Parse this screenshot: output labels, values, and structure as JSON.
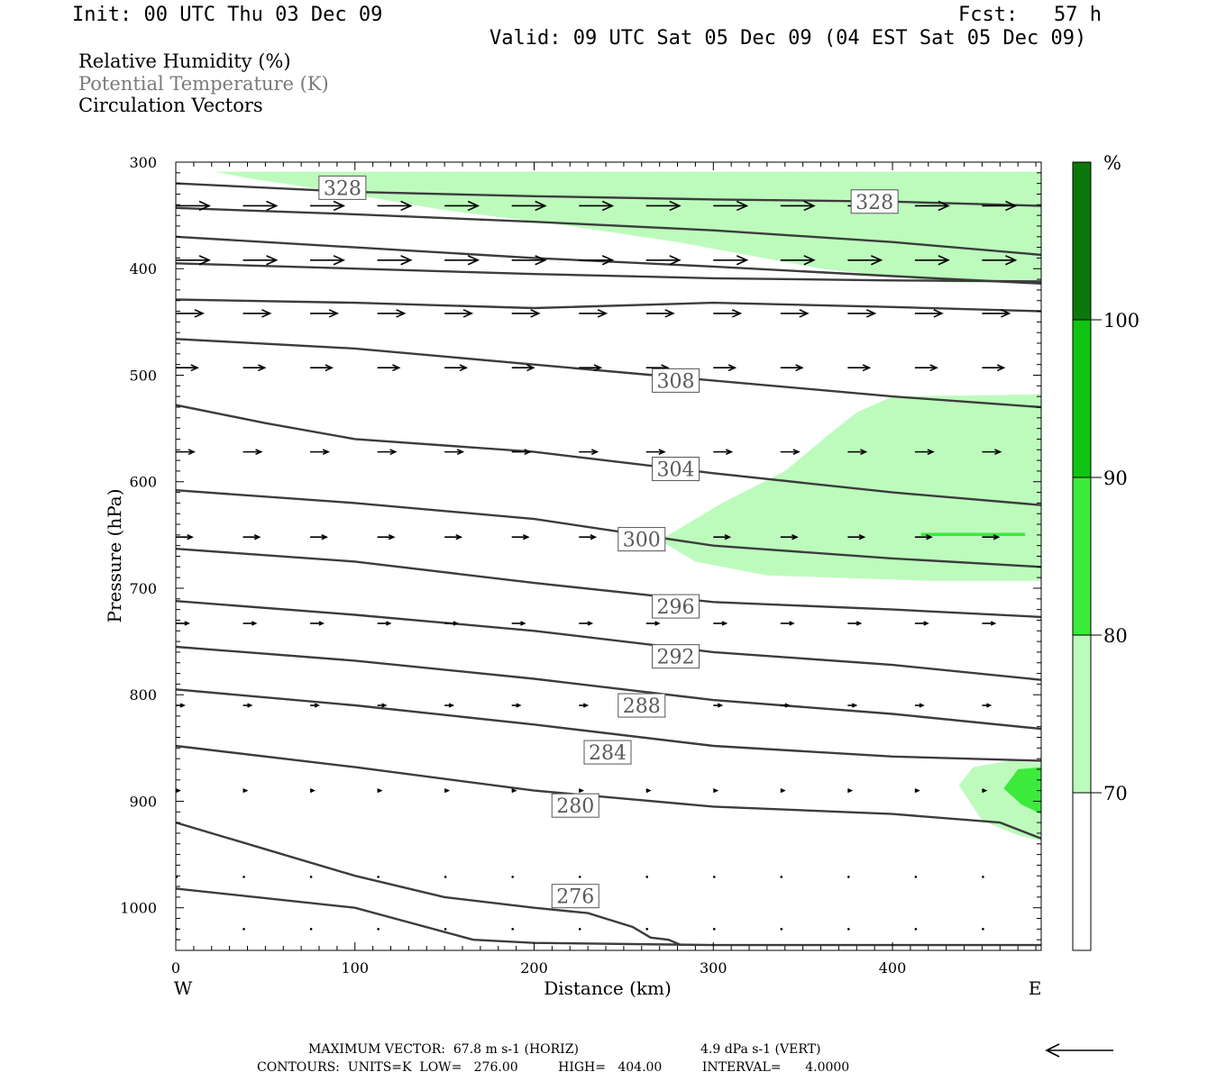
{
  "header": {
    "init": "Init: 00 UTC Thu 03 Dec 09",
    "fcst": "Fcst:   57 h",
    "valid": "Valid: 09 UTC Sat 05 Dec 09 (04 EST Sat 05 Dec 09)"
  },
  "legend_titles": [
    {
      "text": "Relative Humidity (%)",
      "color": "#000000"
    },
    {
      "text": "Potential Temperature (K)",
      "color": "#7a7a7a"
    },
    {
      "text": "Circulation Vectors",
      "color": "#000000"
    }
  ],
  "colorbar": {
    "unit_label": "%",
    "levels": [
      "70",
      "80",
      "90",
      "100"
    ],
    "colors": [
      "#ffffff",
      "#bdfbbd",
      "#3cea3c",
      "#11c411",
      "#0c780c"
    ]
  },
  "footer": {
    "max_vector": "MAXIMUM VECTOR:  67.8 m s-1 (HORIZ)",
    "max_vector_vert": "4.9 dPa s-1 (VERT)",
    "contours": "CONTOURS:  UNITS=K  LOW=   276.00          HIGH=   404.00          INTERVAL=      4.0000"
  },
  "chart_data": {
    "type": "line",
    "xlabel": "Distance (km)",
    "ylabel": "Pressure (hPa)",
    "x_ticks": [
      0,
      100,
      200,
      300,
      400
    ],
    "y_ticks": [
      300,
      400,
      500,
      600,
      700,
      800,
      900,
      1000
    ],
    "xlim": [
      0,
      483
    ],
    "ylim": [
      300,
      1040
    ],
    "y_inverted": true,
    "x_end_labels": {
      "left": "W",
      "right": "E"
    },
    "colors": {
      "contour": "#3c3c3c",
      "rh_70_80": "#bdfbbd",
      "rh_80_90": "#3cea3c"
    },
    "rh_fill_regions": [
      {
        "level": "70-80",
        "polygon": [
          [
            22,
            309
          ],
          [
            140,
            309
          ],
          [
            300,
            309
          ],
          [
            483,
            309
          ],
          [
            483,
            413
          ],
          [
            430,
            413
          ],
          [
            360,
            400
          ],
          [
            280,
            375
          ],
          [
            220,
            360
          ],
          [
            150,
            345
          ],
          [
            80,
            325
          ],
          [
            40,
            315
          ]
        ]
      },
      {
        "level": "70-80",
        "polygon": [
          [
            270,
            655
          ],
          [
            305,
            620
          ],
          [
            340,
            590
          ],
          [
            365,
            555
          ],
          [
            380,
            535
          ],
          [
            400,
            520
          ],
          [
            483,
            518
          ],
          [
            483,
            693
          ],
          [
            420,
            693
          ],
          [
            330,
            688
          ],
          [
            290,
            675
          ]
        ]
      },
      {
        "level": "70-80",
        "polygon": [
          [
            437,
            885
          ],
          [
            445,
            868
          ],
          [
            465,
            862
          ],
          [
            483,
            864
          ],
          [
            483,
            937
          ],
          [
            470,
            932
          ],
          [
            450,
            918
          ]
        ]
      },
      {
        "level": "80-90",
        "polygon": [
          [
            462,
            888
          ],
          [
            470,
            870
          ],
          [
            483,
            868
          ],
          [
            483,
            912
          ],
          [
            472,
            903
          ]
        ]
      },
      {
        "level": "80-90",
        "polygon": [
          [
            416,
            651
          ],
          [
            474,
            651
          ],
          [
            474,
            648
          ],
          [
            416,
            648
          ]
        ]
      }
    ],
    "series": [
      {
        "name": "328",
        "x": [
          0,
          100,
          200,
          300,
          400,
          483
        ],
        "y": [
          320,
          328,
          332,
          335,
          337,
          341
        ]
      },
      {
        "name": "",
        "x": [
          0,
          100,
          200,
          300,
          400,
          483
        ],
        "y": [
          343,
          349,
          356,
          364,
          375,
          387
        ]
      },
      {
        "name": "",
        "x": [
          0,
          100,
          200,
          300,
          400,
          483
        ],
        "y": [
          370,
          380,
          390,
          398,
          407,
          414
        ]
      },
      {
        "name": "",
        "x": [
          0,
          100,
          200,
          300,
          400,
          483
        ],
        "y": [
          395,
          400,
          405,
          409,
          411,
          412
        ]
      },
      {
        "name": "",
        "x": [
          0,
          100,
          200,
          300,
          400,
          483
        ],
        "y": [
          429,
          432,
          437,
          432,
          436,
          440
        ]
      },
      {
        "name": "308",
        "x": [
          0,
          100,
          200,
          300,
          400,
          483
        ],
        "y": [
          466,
          475,
          490,
          505,
          520,
          530
        ]
      },
      {
        "name": "304",
        "x": [
          0,
          50,
          100,
          200,
          300,
          400,
          483
        ],
        "y": [
          528,
          545,
          560,
          572,
          592,
          610,
          622
        ]
      },
      {
        "name": "300",
        "x": [
          0,
          100,
          200,
          300,
          400,
          483
        ],
        "y": [
          608,
          620,
          635,
          660,
          672,
          680
        ]
      },
      {
        "name": "296",
        "x": [
          0,
          100,
          200,
          300,
          400,
          483
        ],
        "y": [
          663,
          675,
          695,
          713,
          720,
          727
        ]
      },
      {
        "name": "292",
        "x": [
          0,
          100,
          200,
          300,
          400,
          483
        ],
        "y": [
          712,
          725,
          740,
          760,
          772,
          786
        ]
      },
      {
        "name": "288",
        "x": [
          0,
          100,
          200,
          300,
          400,
          483
        ],
        "y": [
          755,
          768,
          785,
          805,
          818,
          832
        ]
      },
      {
        "name": "284",
        "x": [
          0,
          100,
          200,
          300,
          400,
          483
        ],
        "y": [
          795,
          810,
          828,
          848,
          858,
          862
        ]
      },
      {
        "name": "280",
        "x": [
          0,
          100,
          200,
          300,
          400,
          460,
          483
        ],
        "y": [
          848,
          868,
          890,
          905,
          912,
          920,
          935
        ]
      },
      {
        "name": "276",
        "x": [
          0,
          50,
          100,
          150,
          200,
          230,
          255,
          265,
          275,
          282
        ],
        "y": [
          920,
          945,
          970,
          990,
          1000,
          1005,
          1018,
          1028,
          1030,
          1035
        ]
      },
      {
        "name": "",
        "x": [
          0,
          100,
          166,
          200,
          300,
          400,
          483
        ],
        "y": [
          982,
          1000,
          1030,
          1033,
          1035,
          1035,
          1035
        ]
      }
    ],
    "contour_label_positions": [
      {
        "text": "328",
        "x": 93,
        "y": 324
      },
      {
        "text": "328",
        "x": 390,
        "y": 337
      },
      {
        "text": "308",
        "x": 279,
        "y": 505
      },
      {
        "text": "304",
        "x": 279,
        "y": 588
      },
      {
        "text": "300",
        "x": 260,
        "y": 654
      },
      {
        "text": "296",
        "x": 279,
        "y": 717
      },
      {
        "text": "292",
        "x": 279,
        "y": 764
      },
      {
        "text": "288",
        "x": 260,
        "y": 810
      },
      {
        "text": "284",
        "x": 241,
        "y": 854
      },
      {
        "text": "280",
        "x": 223,
        "y": 904
      },
      {
        "text": "276",
        "x": 223,
        "y": 989
      }
    ],
    "vector_rows": [
      {
        "p": 341,
        "len": 37
      },
      {
        "p": 392,
        "len": 37
      },
      {
        "p": 442,
        "len": 30
      },
      {
        "p": 493,
        "len": 24
      },
      {
        "p": 572,
        "len": 20
      },
      {
        "p": 652,
        "len": 18
      },
      {
        "p": 733,
        "len": 14
      },
      {
        "p": 810,
        "len": 9
      },
      {
        "p": 890,
        "len": 4
      },
      {
        "p": 971,
        "len": 1
      },
      {
        "p": 1020,
        "len": 1
      }
    ],
    "reference_vector": {
      "direction": "west"
    }
  }
}
